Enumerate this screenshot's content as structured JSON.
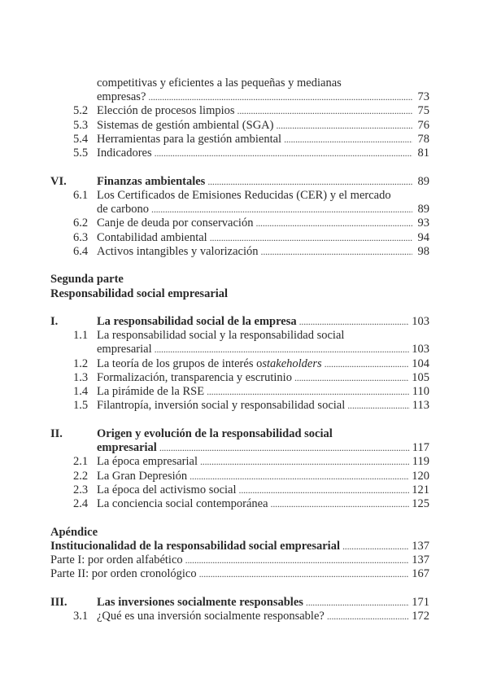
{
  "toc": [
    {
      "type": "cont",
      "lines": [
        "competitivas y eficientes a las pequeñas y medianas",
        "empresas?"
      ],
      "page": "73"
    },
    {
      "type": "sub",
      "num": "5.2",
      "lines": [
        "Elección de procesos limpios"
      ],
      "page": "75"
    },
    {
      "type": "sub",
      "num": "5.3",
      "lines": [
        "Sistemas de gestión ambiental (SGA)"
      ],
      "page": "76"
    },
    {
      "type": "sub",
      "num": "5.4",
      "lines": [
        "Herramientas para la gestión ambiental"
      ],
      "page": "78"
    },
    {
      "type": "sub",
      "num": "5.5",
      "lines": [
        "Indicadores"
      ],
      "page": "81"
    },
    {
      "type": "blank"
    },
    {
      "type": "main",
      "num": "VI.",
      "lines": [
        "Finanzas ambientales"
      ],
      "page": "89"
    },
    {
      "type": "sub",
      "num": "6.1",
      "lines": [
        "Los Certificados de Emisiones Reducidas (CER) y el mercado",
        "de carbono"
      ],
      "page": "89"
    },
    {
      "type": "sub",
      "num": "6.2",
      "lines": [
        "Canje de deuda por conservación"
      ],
      "page": "93"
    },
    {
      "type": "sub",
      "num": "6.3",
      "lines": [
        "Contabilidad ambiental"
      ],
      "page": "94"
    },
    {
      "type": "sub",
      "num": "6.4",
      "lines": [
        "Activos intangibles y valorización"
      ],
      "page": "98"
    },
    {
      "type": "blank"
    },
    {
      "type": "head",
      "lines": [
        "Segunda parte",
        "Responsabilidad social empresarial"
      ]
    },
    {
      "type": "blank"
    },
    {
      "type": "main",
      "num": "I.",
      "lines": [
        "La responsabilidad social de la empresa"
      ],
      "page": "103"
    },
    {
      "type": "sub",
      "num": "1.1",
      "lines": [
        "La responsabilidad social y la responsabilidad social",
        "empresarial"
      ],
      "page": "103"
    },
    {
      "type": "sub",
      "num": "1.2",
      "lines": [
        "La teoría de los grupos de interés o "
      ],
      "italic": "stakeholders",
      "page": "104"
    },
    {
      "type": "sub",
      "num": "1.3",
      "lines": [
        "Formalización, transparencia y escrutinio"
      ],
      "page": "105"
    },
    {
      "type": "sub",
      "num": "1.4",
      "lines": [
        "La pirámide de la RSE"
      ],
      "page": "110"
    },
    {
      "type": "sub",
      "num": "1.5",
      "lines": [
        "Filantropía, inversión social y responsabilidad social"
      ],
      "page": "113"
    },
    {
      "type": "blank"
    },
    {
      "type": "main",
      "num": "II.",
      "lines": [
        "Origen y evolución de la responsabilidad social",
        "empresarial"
      ],
      "page": "117"
    },
    {
      "type": "sub",
      "num": "2.1",
      "lines": [
        "La época empresarial"
      ],
      "page": "119"
    },
    {
      "type": "sub",
      "num": "2.2",
      "lines": [
        "La Gran Depresión"
      ],
      "page": "120"
    },
    {
      "type": "sub",
      "num": "2.3",
      "lines": [
        "La época del activismo social"
      ],
      "page": "121"
    },
    {
      "type": "sub",
      "num": "2.4",
      "lines": [
        "La conciencia social contemporánea"
      ],
      "page": "125"
    },
    {
      "type": "blank"
    },
    {
      "type": "head",
      "lines": [
        "Apéndice"
      ]
    },
    {
      "type": "headpage",
      "lines": [
        "Institucionalidad de la responsabilidad social empresarial"
      ],
      "page": "137"
    },
    {
      "type": "plain",
      "lines": [
        "Parte I: por orden alfabético"
      ],
      "page": "137"
    },
    {
      "type": "plain",
      "lines": [
        "Parte II: por orden cronológico"
      ],
      "page": "167"
    },
    {
      "type": "blank"
    },
    {
      "type": "main",
      "num": "III.",
      "lines": [
        "Las inversiones socialmente responsables"
      ],
      "page": "171"
    },
    {
      "type": "sub",
      "num": "3.1",
      "lines": [
        "¿Qué es una inversión socialmente responsable?"
      ],
      "page": "172"
    }
  ]
}
